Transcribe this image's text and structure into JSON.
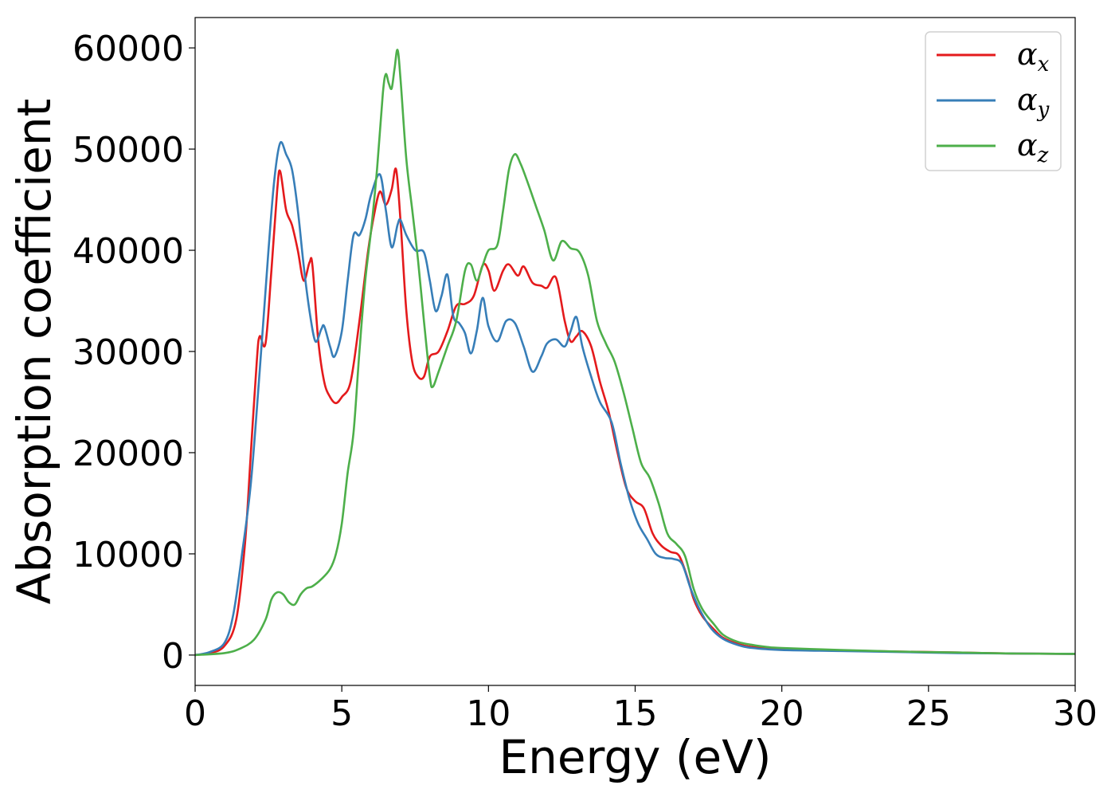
{
  "chart_data": {
    "type": "line",
    "title": "",
    "xlabel": "Energy (eV)",
    "ylabel": "Absorption coefficient",
    "xlim": [
      0,
      30
    ],
    "ylim": [
      -3000,
      63000
    ],
    "xticks": [
      0,
      5,
      10,
      15,
      20,
      25,
      30
    ],
    "yticks": [
      0,
      10000,
      20000,
      30000,
      40000,
      50000,
      60000
    ],
    "grid": false,
    "legend": {
      "position": "top-right"
    },
    "series": [
      {
        "name": "αx",
        "symbol": "α",
        "sub": "x",
        "color": "#e41a1c",
        "points": [
          [
            0,
            0
          ],
          [
            0.5,
            200
          ],
          [
            1.0,
            900
          ],
          [
            1.4,
            3500
          ],
          [
            1.7,
            11000
          ],
          [
            1.9,
            20000
          ],
          [
            2.1,
            29000
          ],
          [
            2.2,
            31500
          ],
          [
            2.4,
            30800
          ],
          [
            2.6,
            38000
          ],
          [
            2.8,
            46000
          ],
          [
            2.9,
            47800
          ],
          [
            3.1,
            44000
          ],
          [
            3.3,
            42500
          ],
          [
            3.5,
            40000
          ],
          [
            3.7,
            37000
          ],
          [
            3.9,
            38800
          ],
          [
            4.0,
            38500
          ],
          [
            4.2,
            31000
          ],
          [
            4.4,
            27000
          ],
          [
            4.6,
            25500
          ],
          [
            4.8,
            24900
          ],
          [
            5.0,
            25500
          ],
          [
            5.3,
            27000
          ],
          [
            5.6,
            33000
          ],
          [
            5.9,
            40000
          ],
          [
            6.1,
            43500
          ],
          [
            6.3,
            45800
          ],
          [
            6.5,
            44500
          ],
          [
            6.7,
            46000
          ],
          [
            6.85,
            48000
          ],
          [
            7.0,
            43000
          ],
          [
            7.2,
            34000
          ],
          [
            7.4,
            29000
          ],
          [
            7.6,
            27500
          ],
          [
            7.8,
            27500
          ],
          [
            8.0,
            29500
          ],
          [
            8.3,
            30000
          ],
          [
            8.6,
            32000
          ],
          [
            8.9,
            34500
          ],
          [
            9.2,
            34700
          ],
          [
            9.5,
            35500
          ],
          [
            9.8,
            38500
          ],
          [
            10.0,
            38000
          ],
          [
            10.2,
            36000
          ],
          [
            10.5,
            38000
          ],
          [
            10.7,
            38600
          ],
          [
            11.0,
            37500
          ],
          [
            11.2,
            38400
          ],
          [
            11.5,
            36800
          ],
          [
            11.8,
            36500
          ],
          [
            12.0,
            36300
          ],
          [
            12.3,
            37300
          ],
          [
            12.6,
            33000
          ],
          [
            12.8,
            31000
          ],
          [
            13.0,
            31500
          ],
          [
            13.2,
            32000
          ],
          [
            13.5,
            30500
          ],
          [
            13.8,
            27000
          ],
          [
            14.1,
            24000
          ],
          [
            14.4,
            20000
          ],
          [
            14.7,
            16500
          ],
          [
            15.0,
            15200
          ],
          [
            15.3,
            14500
          ],
          [
            15.6,
            12000
          ],
          [
            15.9,
            10800
          ],
          [
            16.2,
            10200
          ],
          [
            16.5,
            9800
          ],
          [
            16.8,
            7500
          ],
          [
            17.0,
            5500
          ],
          [
            17.3,
            3800
          ],
          [
            17.7,
            2500
          ],
          [
            18.0,
            1700
          ],
          [
            18.5,
            1100
          ],
          [
            19.0,
            800
          ],
          [
            20.0,
            600
          ],
          [
            22.0,
            450
          ],
          [
            24.0,
            350
          ],
          [
            26.0,
            250
          ],
          [
            28.0,
            150
          ],
          [
            30.0,
            120
          ]
        ]
      },
      {
        "name": "αy",
        "symbol": "α",
        "sub": "y",
        "color": "#377eb8",
        "points": [
          [
            0,
            0
          ],
          [
            0.5,
            300
          ],
          [
            1.0,
            1200
          ],
          [
            1.3,
            4000
          ],
          [
            1.6,
            10000
          ],
          [
            1.9,
            17000
          ],
          [
            2.2,
            28000
          ],
          [
            2.5,
            40000
          ],
          [
            2.7,
            47000
          ],
          [
            2.9,
            50600
          ],
          [
            3.1,
            49500
          ],
          [
            3.3,
            48000
          ],
          [
            3.5,
            44000
          ],
          [
            3.7,
            38500
          ],
          [
            3.9,
            34000
          ],
          [
            4.1,
            31000
          ],
          [
            4.3,
            32200
          ],
          [
            4.4,
            32500
          ],
          [
            4.6,
            30500
          ],
          [
            4.75,
            29500
          ],
          [
            5.0,
            32000
          ],
          [
            5.2,
            37000
          ],
          [
            5.4,
            41500
          ],
          [
            5.6,
            41500
          ],
          [
            5.8,
            43000
          ],
          [
            6.0,
            45500
          ],
          [
            6.3,
            47500
          ],
          [
            6.5,
            44000
          ],
          [
            6.7,
            40300
          ],
          [
            6.9,
            42500
          ],
          [
            7.0,
            43000
          ],
          [
            7.2,
            41500
          ],
          [
            7.5,
            40000
          ],
          [
            7.8,
            39800
          ],
          [
            8.0,
            37000
          ],
          [
            8.2,
            34000
          ],
          [
            8.4,
            35500
          ],
          [
            8.6,
            37600
          ],
          [
            8.8,
            33500
          ],
          [
            9.0,
            32800
          ],
          [
            9.2,
            31800
          ],
          [
            9.4,
            29800
          ],
          [
            9.6,
            32000
          ],
          [
            9.8,
            35300
          ],
          [
            10.0,
            32500
          ],
          [
            10.3,
            31000
          ],
          [
            10.6,
            33000
          ],
          [
            10.9,
            32800
          ],
          [
            11.2,
            30500
          ],
          [
            11.5,
            28000
          ],
          [
            11.8,
            29500
          ],
          [
            12.0,
            30800
          ],
          [
            12.3,
            31200
          ],
          [
            12.6,
            30500
          ],
          [
            12.8,
            32000
          ],
          [
            13.0,
            33400
          ],
          [
            13.2,
            30500
          ],
          [
            13.5,
            27500
          ],
          [
            13.8,
            25000
          ],
          [
            14.2,
            23000
          ],
          [
            14.5,
            19000
          ],
          [
            14.8,
            15500
          ],
          [
            15.1,
            13000
          ],
          [
            15.4,
            11500
          ],
          [
            15.7,
            10000
          ],
          [
            16.0,
            9600
          ],
          [
            16.3,
            9500
          ],
          [
            16.6,
            9000
          ],
          [
            16.9,
            6500
          ],
          [
            17.2,
            4500
          ],
          [
            17.6,
            2600
          ],
          [
            18.0,
            1600
          ],
          [
            18.5,
            1000
          ],
          [
            19.0,
            700
          ],
          [
            20.0,
            500
          ],
          [
            22.0,
            400
          ],
          [
            24.0,
            300
          ],
          [
            26.0,
            200
          ],
          [
            28.0,
            150
          ],
          [
            30.0,
            120
          ]
        ]
      },
      {
        "name": "αz",
        "symbol": "α",
        "sub": "z",
        "color": "#4daf4a",
        "points": [
          [
            0,
            0
          ],
          [
            1.0,
            200
          ],
          [
            1.5,
            600
          ],
          [
            2.0,
            1500
          ],
          [
            2.4,
            3500
          ],
          [
            2.6,
            5500
          ],
          [
            2.8,
            6200
          ],
          [
            3.0,
            6000
          ],
          [
            3.2,
            5200
          ],
          [
            3.4,
            5000
          ],
          [
            3.6,
            6000
          ],
          [
            3.8,
            6600
          ],
          [
            4.0,
            6800
          ],
          [
            4.3,
            7500
          ],
          [
            4.6,
            8500
          ],
          [
            4.8,
            10000
          ],
          [
            5.0,
            13000
          ],
          [
            5.2,
            18000
          ],
          [
            5.4,
            22000
          ],
          [
            5.6,
            30000
          ],
          [
            5.8,
            37000
          ],
          [
            6.0,
            42000
          ],
          [
            6.2,
            48000
          ],
          [
            6.4,
            55500
          ],
          [
            6.5,
            57400
          ],
          [
            6.6,
            56500
          ],
          [
            6.7,
            56000
          ],
          [
            6.8,
            58000
          ],
          [
            6.9,
            59800
          ],
          [
            7.0,
            57000
          ],
          [
            7.2,
            49000
          ],
          [
            7.4,
            44000
          ],
          [
            7.6,
            39000
          ],
          [
            7.8,
            33000
          ],
          [
            8.0,
            27500
          ],
          [
            8.1,
            26500
          ],
          [
            8.3,
            28000
          ],
          [
            8.6,
            30500
          ],
          [
            8.9,
            33000
          ],
          [
            9.2,
            38000
          ],
          [
            9.4,
            38600
          ],
          [
            9.6,
            37000
          ],
          [
            9.8,
            38500
          ],
          [
            10.0,
            40000
          ],
          [
            10.3,
            40500
          ],
          [
            10.5,
            44000
          ],
          [
            10.7,
            48000
          ],
          [
            10.9,
            49500
          ],
          [
            11.1,
            48500
          ],
          [
            11.3,
            47000
          ],
          [
            11.6,
            44500
          ],
          [
            11.9,
            42000
          ],
          [
            12.2,
            39000
          ],
          [
            12.5,
            40900
          ],
          [
            12.8,
            40200
          ],
          [
            13.1,
            39800
          ],
          [
            13.4,
            37500
          ],
          [
            13.7,
            33000
          ],
          [
            14.0,
            30800
          ],
          [
            14.3,
            29000
          ],
          [
            14.6,
            26000
          ],
          [
            14.9,
            22500
          ],
          [
            15.2,
            19000
          ],
          [
            15.5,
            17500
          ],
          [
            15.8,
            15000
          ],
          [
            16.1,
            12000
          ],
          [
            16.4,
            11000
          ],
          [
            16.7,
            9800
          ],
          [
            17.0,
            6500
          ],
          [
            17.3,
            4500
          ],
          [
            17.7,
            3000
          ],
          [
            18.0,
            2000
          ],
          [
            18.5,
            1300
          ],
          [
            19.0,
            1000
          ],
          [
            19.5,
            800
          ],
          [
            20.0,
            700
          ],
          [
            22.0,
            500
          ],
          [
            24.0,
            350
          ],
          [
            26.0,
            250
          ],
          [
            28.0,
            150
          ],
          [
            30.0,
            120
          ]
        ]
      }
    ]
  }
}
